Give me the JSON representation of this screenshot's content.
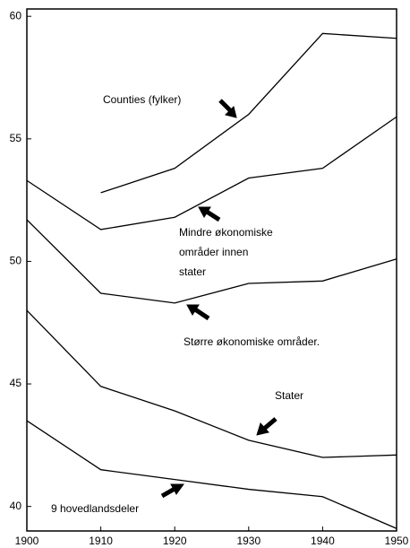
{
  "chart_data": {
    "type": "line",
    "x": [
      1900,
      1910,
      1920,
      1930,
      1940,
      1950
    ],
    "series": [
      {
        "name": "Counties (fylker)",
        "color": "#000000",
        "values": [
          null,
          52.8,
          53.8,
          56.0,
          59.3,
          59.1
        ]
      },
      {
        "name": "Mindre økonomiske områder innen stater",
        "color": "#000000",
        "values": [
          53.3,
          51.3,
          51.8,
          53.4,
          53.8,
          55.9
        ]
      },
      {
        "name": "Større økonomiske områder.",
        "color": "#000000",
        "values": [
          51.7,
          48.7,
          48.3,
          49.1,
          49.2,
          50.1
        ]
      },
      {
        "name": "Stater",
        "color": "#000000",
        "values": [
          48.0,
          44.9,
          43.9,
          42.7,
          42.0,
          42.1
        ]
      },
      {
        "name": "9 hovedlandsdeler",
        "color": "#000000",
        "values": [
          43.5,
          41.5,
          41.1,
          40.7,
          40.4,
          39.1
        ]
      }
    ],
    "xlim": [
      1900,
      1950
    ],
    "xticks": [
      1900,
      1910,
      1920,
      1930,
      1940,
      1950
    ],
    "ylim": [
      39,
      60.3
    ],
    "yticks": [
      40,
      45,
      50,
      55,
      60
    ]
  }
}
